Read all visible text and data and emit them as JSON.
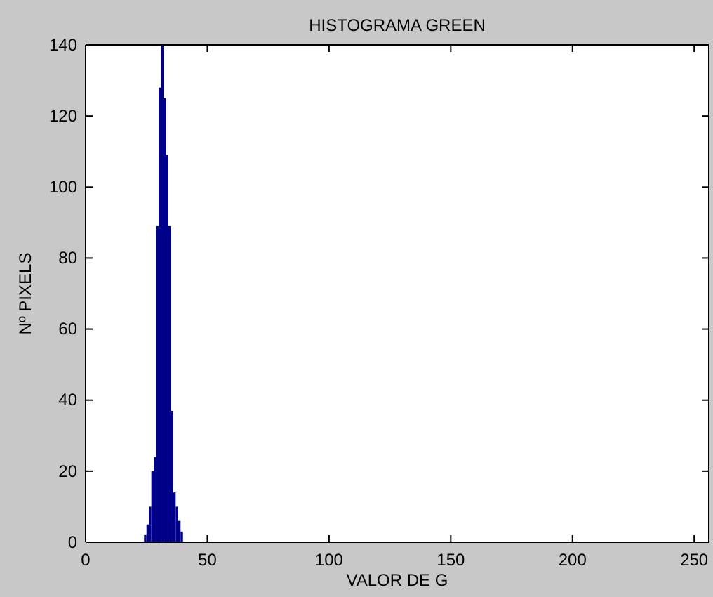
{
  "chart_data": {
    "type": "histogram",
    "title": "HISTOGRAMA GREEN",
    "xlabel": "VALOR DE G",
    "ylabel": "Nº PIXELS",
    "bins": [
      24,
      25,
      26,
      27,
      28,
      29,
      30,
      31,
      32,
      33,
      34,
      35,
      36,
      37,
      38,
      39,
      40
    ],
    "values": [
      2,
      5,
      10,
      20,
      24,
      89,
      128,
      140,
      125,
      109,
      89,
      37,
      14,
      10,
      6,
      3
    ],
    "color": "#00008f",
    "xlim": [
      0,
      256
    ],
    "xticks": [
      0,
      50,
      100,
      150,
      200,
      250
    ],
    "ylim": [
      0,
      140
    ],
    "yticks": [
      0,
      20,
      40,
      60,
      80,
      100,
      120,
      140
    ],
    "grid": false
  }
}
